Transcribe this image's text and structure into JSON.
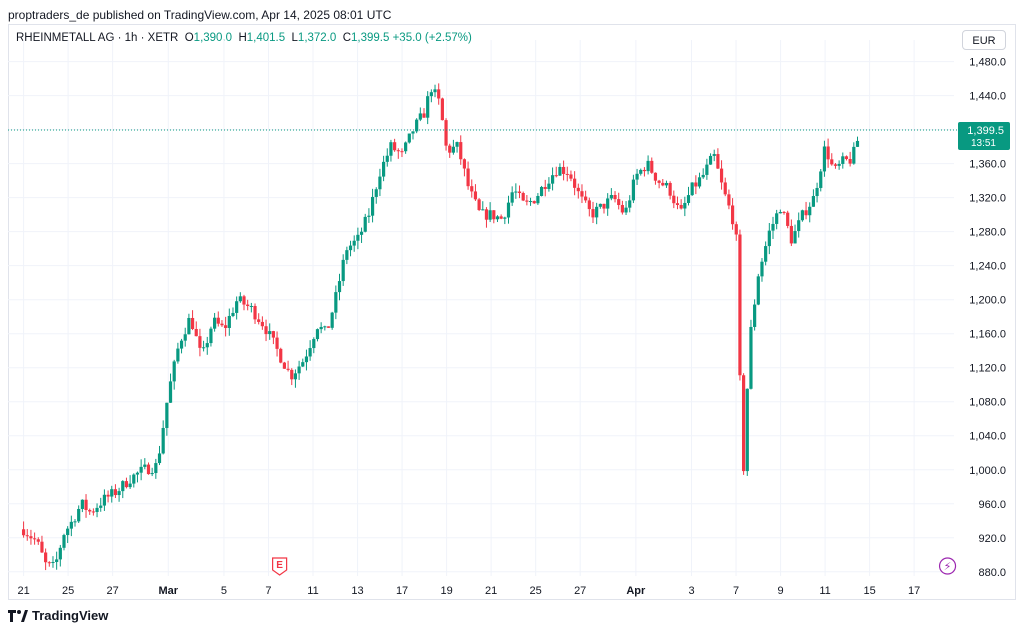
{
  "header": {
    "published": "proptraders_de published on TradingView.com, Apr 14, 2025 08:01 UTC"
  },
  "legend": {
    "symbol": "RHEINMETALL AG · 1h · XETR",
    "o_label": "O",
    "o": "1,390.0",
    "h_label": "H",
    "h": "1,401.5",
    "l_label": "L",
    "l": "1,372.0",
    "c_label": "C",
    "c": "1,399.5",
    "change": "+35.0 (+2.57%)"
  },
  "currency": "EUR",
  "last_price": {
    "value": "1,399.5",
    "countdown": "13:51"
  },
  "brand": "TradingView",
  "colors": {
    "up": "#089981",
    "down": "#f23645",
    "grid": "#f0f3fa",
    "last_line": "#089981"
  },
  "markers": [
    {
      "label": "E",
      "x_index": 11.5,
      "icon": "earnings-icon"
    },
    {
      "label": "⚡",
      "x_index": 41.5,
      "icon": "dividend-flash-icon"
    }
  ],
  "chart_data": {
    "type": "candlestick",
    "y_ticks": [
      880,
      920,
      960,
      1000,
      1040,
      1080,
      1120,
      1160,
      1200,
      1240,
      1280,
      1320,
      1360,
      1400,
      1440,
      1480
    ],
    "y_tick_labels": [
      "880.0",
      "920.0",
      "960.0",
      "1,000.0",
      "1,040.0",
      "1,080.0",
      "1,120.0",
      "1,160.0",
      "1,200.0",
      "1,240.0",
      "1,280.0",
      "1,320.0",
      "1,360.0",
      "",
      "1,440.0",
      "1,480.0"
    ],
    "ylim": [
      868,
      1496
    ],
    "x_tick_labels": [
      "21",
      "25",
      "27",
      "Mar",
      "5",
      "7",
      "11",
      "13",
      "17",
      "19",
      "21",
      "25",
      "27",
      "Apr",
      "3",
      "7",
      "9",
      "11",
      "15",
      "17"
    ],
    "x_tick_positions": [
      0,
      2,
      4,
      6.5,
      9,
      11,
      13,
      15,
      17,
      19,
      21,
      23,
      25,
      27.5,
      30,
      32,
      34,
      36,
      38,
      40
    ],
    "x_range": [
      -0.7,
      41.7
    ],
    "last_price": 1399.5,
    "anchors": [
      [
        0,
        930
      ],
      [
        0.6,
        915
      ],
      [
        1,
        888
      ],
      [
        1.4,
        885
      ],
      [
        1.8,
        925
      ],
      [
        2.2,
        940
      ],
      [
        2.6,
        960
      ],
      [
        3.0,
        950
      ],
      [
        3.6,
        965
      ],
      [
        4.2,
        975
      ],
      [
        4.8,
        990
      ],
      [
        5.4,
        1000
      ],
      [
        6.0,
        1005
      ],
      [
        6.5,
        1090
      ],
      [
        7.0,
        1150
      ],
      [
        7.5,
        1180
      ],
      [
        8.0,
        1130
      ],
      [
        8.5,
        1175
      ],
      [
        9.0,
        1165
      ],
      [
        9.6,
        1200
      ],
      [
        10.2,
        1190
      ],
      [
        10.8,
        1170
      ],
      [
        11.4,
        1140
      ],
      [
        12.0,
        1110
      ],
      [
        12.6,
        1130
      ],
      [
        13.2,
        1170
      ],
      [
        13.6,
        1160
      ],
      [
        14.0,
        1200
      ],
      [
        14.5,
        1260
      ],
      [
        15.0,
        1270
      ],
      [
        15.5,
        1300
      ],
      [
        16.0,
        1350
      ],
      [
        16.5,
        1380
      ],
      [
        17.0,
        1370
      ],
      [
        17.5,
        1400
      ],
      [
        18.0,
        1420
      ],
      [
        18.3,
        1450
      ],
      [
        18.7,
        1430
      ],
      [
        19.0,
        1375
      ],
      [
        19.5,
        1380
      ],
      [
        20.0,
        1330
      ],
      [
        20.5,
        1300
      ],
      [
        21.0,
        1300
      ],
      [
        21.5,
        1295
      ],
      [
        22.0,
        1330
      ],
      [
        22.5,
        1310
      ],
      [
        23.0,
        1320
      ],
      [
        23.5,
        1340
      ],
      [
        24.0,
        1355
      ],
      [
        24.5,
        1350
      ],
      [
        25.0,
        1320
      ],
      [
        25.5,
        1300
      ],
      [
        26.0,
        1310
      ],
      [
        26.5,
        1320
      ],
      [
        27.0,
        1300
      ],
      [
        27.5,
        1345
      ],
      [
        28.0,
        1360
      ],
      [
        28.5,
        1340
      ],
      [
        29.0,
        1330
      ],
      [
        29.5,
        1300
      ],
      [
        30.0,
        1330
      ],
      [
        30.5,
        1345
      ],
      [
        31.0,
        1370
      ],
      [
        31.4,
        1330
      ],
      [
        31.8,
        1300
      ],
      [
        32.0,
        1280
      ],
      [
        32.3,
        980
      ],
      [
        32.6,
        1150
      ],
      [
        33.0,
        1230
      ],
      [
        33.5,
        1280
      ],
      [
        34.0,
        1310
      ],
      [
        34.5,
        1270
      ],
      [
        35.0,
        1300
      ],
      [
        35.5,
        1320
      ],
      [
        36.0,
        1380
      ],
      [
        36.4,
        1350
      ],
      [
        36.8,
        1362
      ],
      [
        37.2,
        1365
      ],
      [
        37.6,
        1399.5
      ]
    ]
  }
}
